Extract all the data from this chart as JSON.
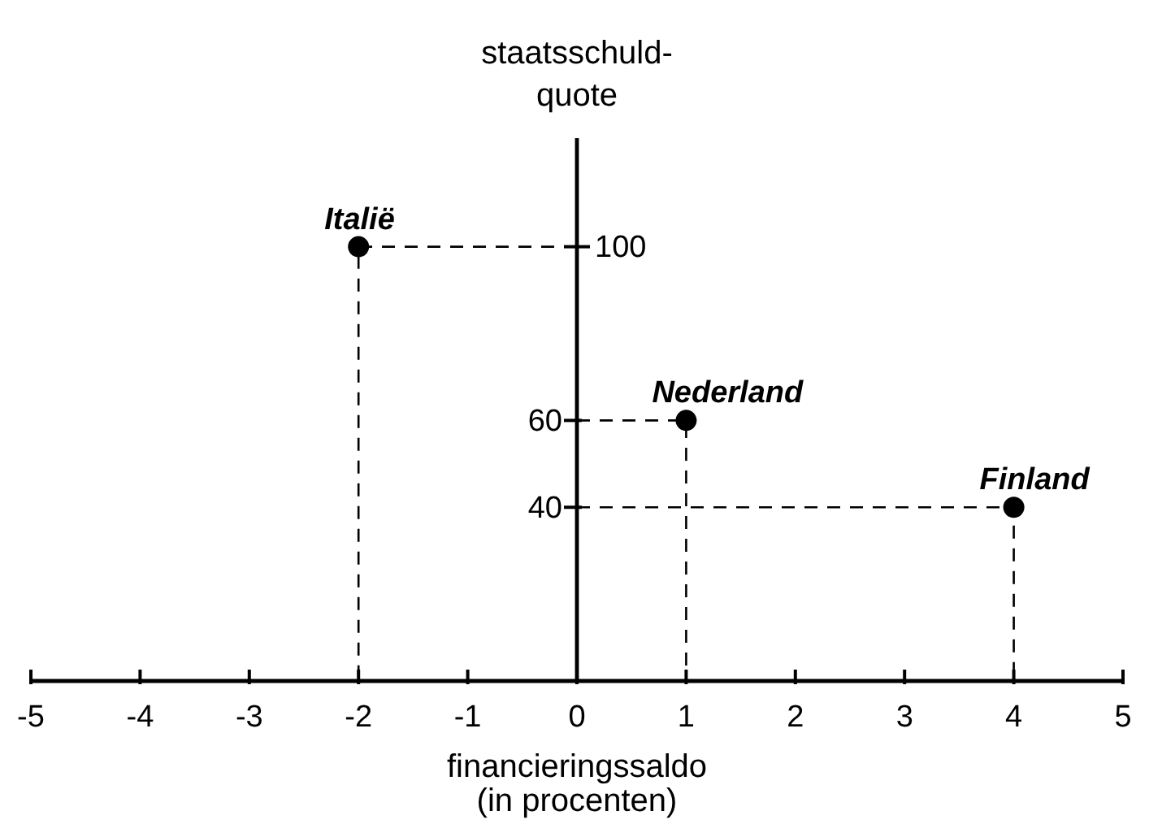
{
  "chart_data": {
    "type": "scatter",
    "xlabel": "financieringssaldo\n(in procenten)",
    "ylabel": "staatsschuld-\nquote",
    "xlim": [
      -5,
      5
    ],
    "ylim": [
      0,
      125
    ],
    "xticks": [
      -5,
      -4,
      -3,
      -2,
      -1,
      0,
      1,
      2,
      3,
      4,
      5
    ],
    "yticks": [
      40,
      60,
      {
        "value": 100,
        "label": null
      }
    ],
    "marker": "circle",
    "series": [
      {
        "type": "scatter",
        "color": "#000000",
        "x": [
          -2,
          1,
          4
        ],
        "values": [
          100,
          60,
          40
        ]
      },
      {
        "type": "line",
        "color": "#000000",
        "line_style": "dashed",
        "marker": "none",
        "x": [
          0,
          -2,
          -2
        ],
        "values": [
          100,
          100,
          0
        ]
      },
      {
        "type": "line",
        "color": "#000000",
        "line_style": "dashed",
        "marker": "none",
        "x": [
          0,
          1,
          1
        ],
        "values": [
          60,
          60,
          0
        ]
      },
      {
        "type": "line",
        "color": "#000000",
        "line_style": "dashed",
        "marker": "none",
        "x": [
          0,
          4,
          4
        ],
        "values": [
          40,
          40,
          0
        ]
      }
    ],
    "annotations": [
      {
        "text": "Italië",
        "x": -2,
        "y": 100
      },
      {
        "text": "Nederland",
        "x": 1,
        "y": 60
      },
      {
        "text": "Finland",
        "x": 4,
        "y": 40
      },
      {
        "text": "100",
        "x": 0,
        "y": 100
      }
    ]
  }
}
